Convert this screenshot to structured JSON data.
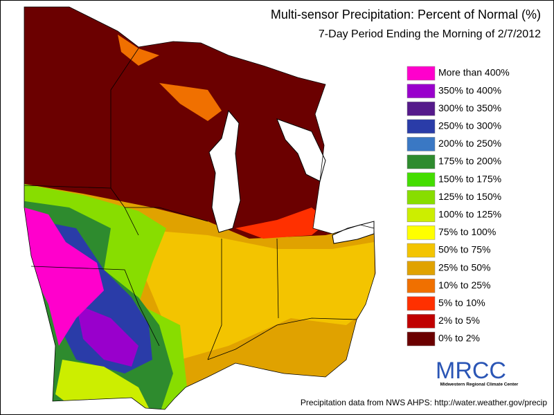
{
  "title": "Multi-sensor Precipitation: Percent of Normal (%)",
  "subtitle": "7-Day Period Ending the Morning of 2/7/2012",
  "legend": [
    {
      "label": "More than 400%",
      "color": "#ff00cc"
    },
    {
      "label": "350% to 400%",
      "color": "#9900cc"
    },
    {
      "label": "300% to 350%",
      "color": "#551a8b"
    },
    {
      "label": "250% to 300%",
      "color": "#2a3ca8"
    },
    {
      "label": "200% to 250%",
      "color": "#3a78c4"
    },
    {
      "label": "175% to 200%",
      "color": "#2e8b2e"
    },
    {
      "label": "150% to 175%",
      "color": "#44dd00"
    },
    {
      "label": "125% to 150%",
      "color": "#88dd00"
    },
    {
      "label": "100% to 125%",
      "color": "#ccee00"
    },
    {
      "label": "75% to 100%",
      "color": "#ffff00"
    },
    {
      "label": "50% to 75%",
      "color": "#f3c400"
    },
    {
      "label": "25% to 50%",
      "color": "#e0a200"
    },
    {
      "label": "10% to 25%",
      "color": "#f07000"
    },
    {
      "label": "5% to 10%",
      "color": "#ff3000"
    },
    {
      "label": "2% to 5%",
      "color": "#c00000"
    },
    {
      "label": "0% to 2%",
      "color": "#6b0000"
    }
  ],
  "logo": {
    "name": "MRCC",
    "subtitle": "Midwestern Regional Climate Center"
  },
  "source": "Precipitation data from NWS AHPS:  http://water.weather.gov/precip"
}
